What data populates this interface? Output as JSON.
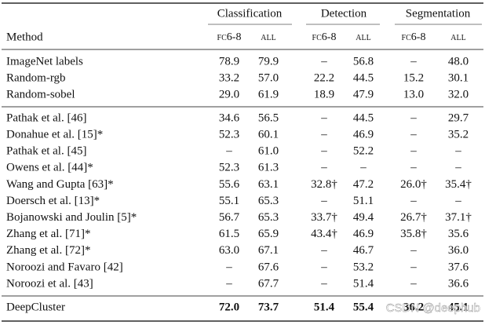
{
  "header": {
    "groups": [
      "Classification",
      "Detection",
      "Segmentation"
    ],
    "columns": [
      "Method",
      "fc6-8",
      "all",
      "fc6-8",
      "all",
      "fc6-8",
      "all"
    ]
  },
  "table": {
    "sections": [
      [
        [
          "ImageNet labels",
          "78.9",
          "79.9",
          "–",
          "56.8",
          "–",
          "48.0"
        ],
        [
          "Random-rgb",
          "33.2",
          "57.0",
          "22.2",
          "44.5",
          "15.2",
          "30.1"
        ],
        [
          "Random-sobel",
          "29.0",
          "61.9",
          "18.9",
          "47.9",
          "13.0",
          "32.0"
        ]
      ],
      [
        [
          "Pathak et al. [46]",
          "34.6",
          "56.5",
          "–",
          "44.5",
          "–",
          "29.7"
        ],
        [
          "Donahue et al. [15]*",
          "52.3",
          "60.1",
          "–",
          "46.9",
          "–",
          "35.2"
        ],
        [
          "Pathak et al. [45]",
          "–",
          "61.0",
          "–",
          "52.2",
          "–",
          "–"
        ],
        [
          "Owens et al. [44]*",
          "52.3",
          "61.3",
          "–",
          "–",
          "–",
          "–"
        ],
        [
          "Wang and Gupta [63]*",
          "55.6",
          "63.1",
          "32.8†",
          "47.2",
          "26.0†",
          "35.4†"
        ],
        [
          "Doersch et al. [13]*",
          "55.1",
          "65.3",
          "–",
          "51.1",
          "–",
          "–"
        ],
        [
          "Bojanowski and Joulin [5]*",
          "56.7",
          "65.3",
          "33.7†",
          "49.4",
          "26.7†",
          "37.1†"
        ],
        [
          "Zhang et al. [71]*",
          "61.5",
          "65.9",
          "43.4†",
          "46.9",
          "35.8†",
          "35.6"
        ],
        [
          "Zhang et al. [72]*",
          "63.0",
          "67.1",
          "–",
          "46.7",
          "–",
          "36.0"
        ],
        [
          "Noroozi and Favaro [42]",
          "–",
          "67.6",
          "–",
          "53.2",
          "–",
          "37.6"
        ],
        [
          "Noroozi et al. [43]",
          "–",
          "67.7",
          "–",
          "51.4",
          "–",
          "36.6"
        ]
      ],
      [
        [
          "DeepCluster",
          "72.0",
          "73.7",
          "51.4",
          "55.4",
          "36.2",
          "45.1"
        ]
      ]
    ]
  },
  "watermark": "CSDN @deephub"
}
